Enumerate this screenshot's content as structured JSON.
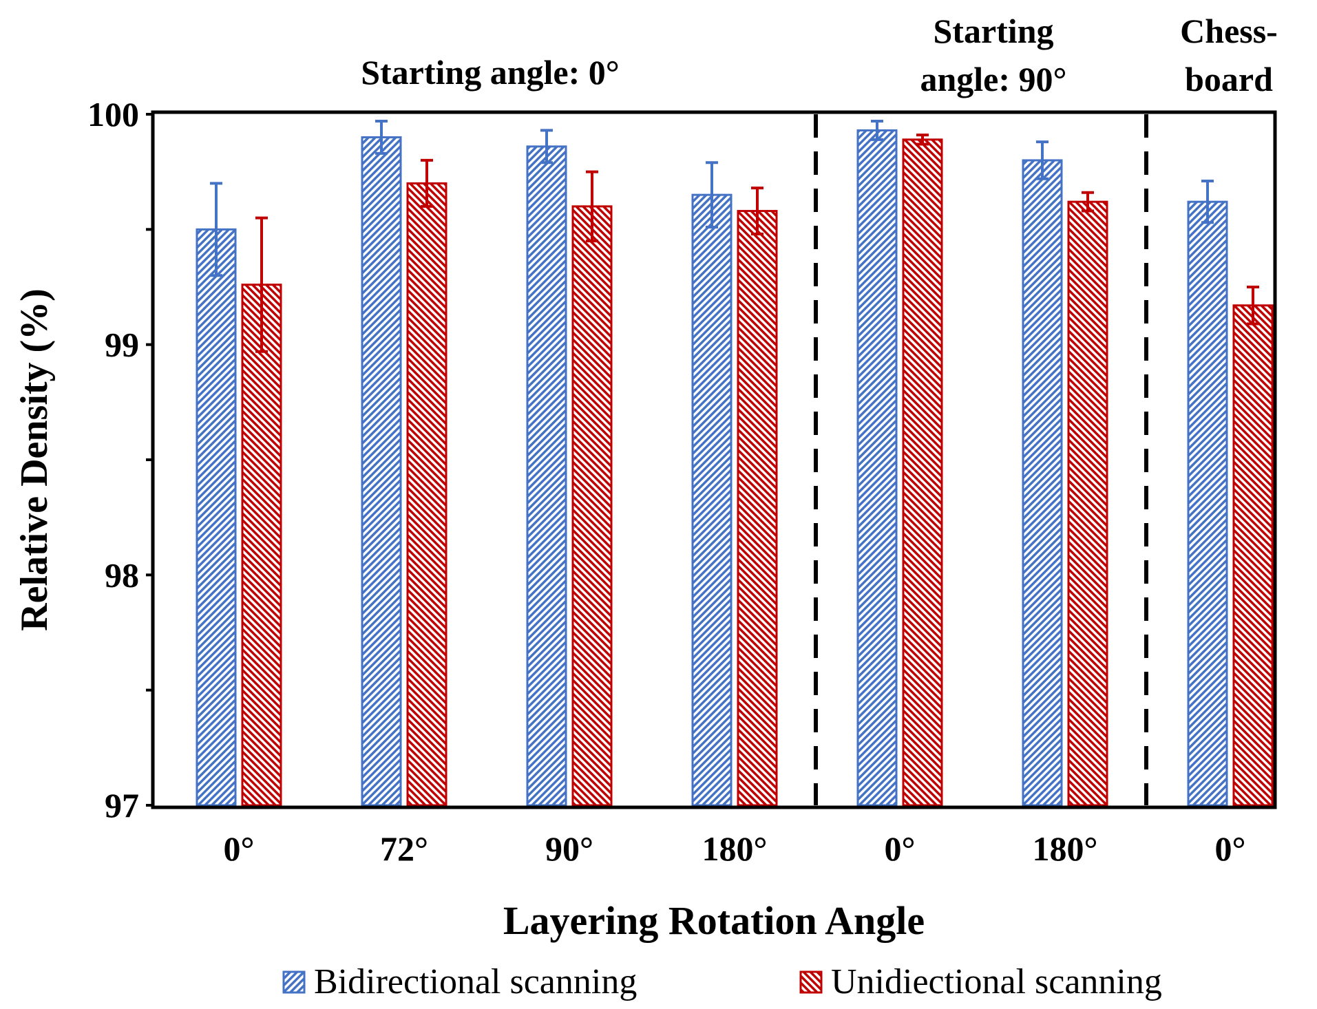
{
  "chart_data": {
    "type": "bar",
    "xlabel": "Layering Rotation Angle",
    "ylabel": "Relative Density (%)",
    "ylim": [
      97,
      100
    ],
    "yticks": [
      "97",
      "98",
      "99",
      "100"
    ],
    "grid": false,
    "legend_placement": "bottom",
    "categories": [
      "0°",
      "72°",
      "90°",
      "180°",
      "0°",
      "180°",
      "0°"
    ],
    "groups": [
      {
        "label": "Starting angle: 0°",
        "categories": [
          0,
          1,
          2,
          3
        ]
      },
      {
        "label_lines": [
          "Starting",
          "angle: 90°"
        ],
        "categories": [
          4,
          5
        ]
      },
      {
        "label_lines": [
          "Chess-",
          "board"
        ],
        "categories": [
          6
        ]
      }
    ],
    "series": [
      {
        "name": "Bidirectional scanning",
        "color": "#4472C4",
        "values": [
          99.5,
          99.9,
          99.86,
          99.65,
          99.93,
          99.8,
          99.62
        ],
        "errors": [
          0.2,
          0.07,
          0.07,
          0.14,
          0.04,
          0.08,
          0.09
        ]
      },
      {
        "name": "Unidiectional scanning",
        "color": "#C00000",
        "values": [
          99.26,
          99.7,
          99.6,
          99.58,
          99.89,
          99.62,
          99.17
        ],
        "errors": [
          0.29,
          0.1,
          0.15,
          0.1,
          0.02,
          0.04,
          0.08
        ]
      }
    ]
  }
}
